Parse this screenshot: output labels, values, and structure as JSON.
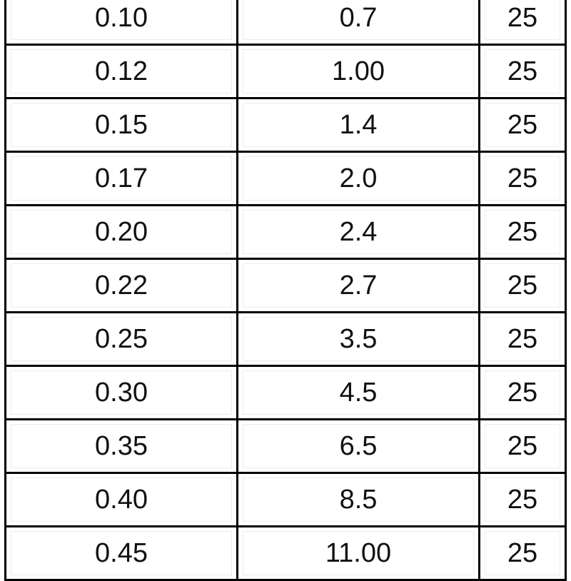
{
  "table": {
    "rows": [
      [
        "0.10",
        "0.7",
        "25"
      ],
      [
        "0.12",
        "1.00",
        "25"
      ],
      [
        "0.15",
        "1.4",
        "25"
      ],
      [
        "0.17",
        "2.0",
        "25"
      ],
      [
        "0.20",
        "2.4",
        "25"
      ],
      [
        "0.22",
        "2.7",
        "25"
      ],
      [
        "0.25",
        "3.5",
        "25"
      ],
      [
        "0.30",
        "4.5",
        "25"
      ],
      [
        "0.35",
        "6.5",
        "25"
      ],
      [
        "0.40",
        "8.5",
        "25"
      ],
      [
        "0.45",
        "11.00",
        "25"
      ]
    ]
  }
}
